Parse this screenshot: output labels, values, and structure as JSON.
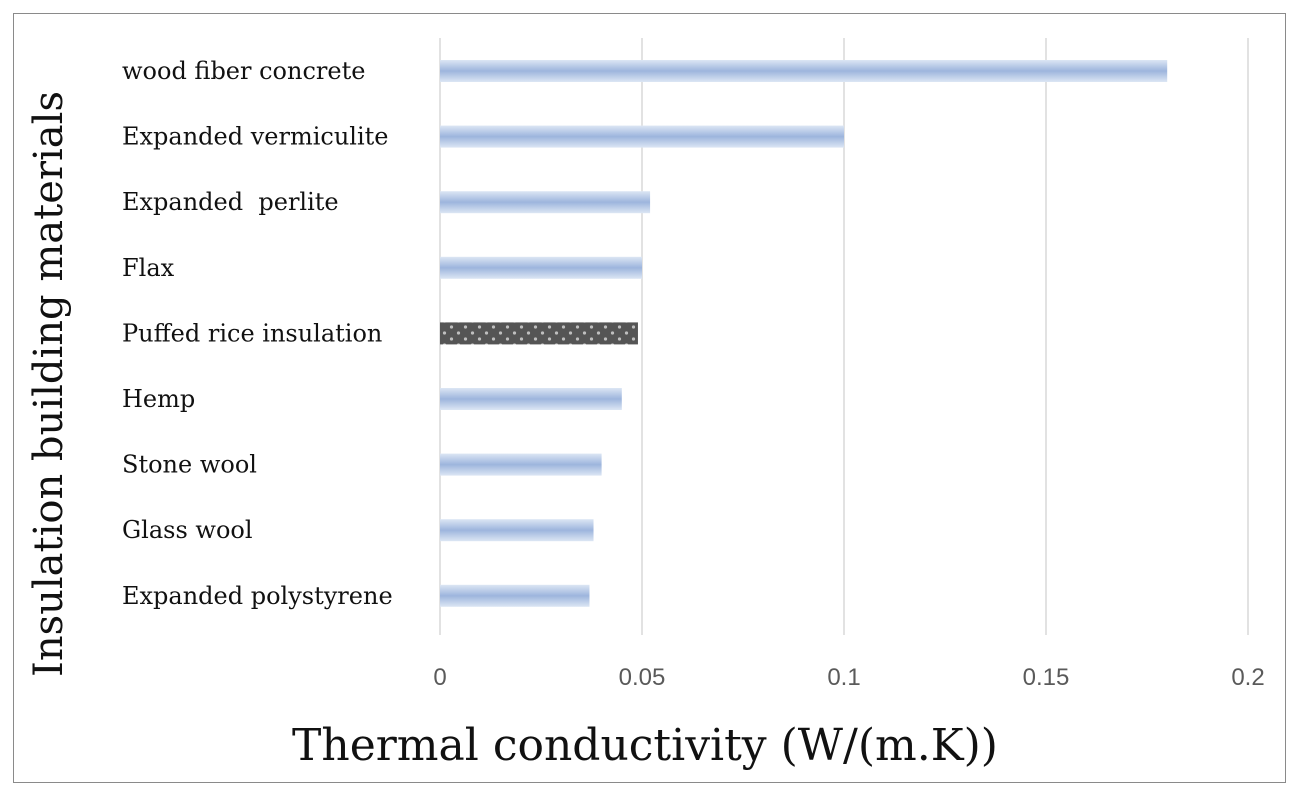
{
  "chart_data": {
    "type": "bar",
    "orientation": "horizontal",
    "categories": [
      "wood fiber concrete",
      "Expanded vermiculite",
      "Expanded  perlite",
      "Flax",
      "Puffed rice insulation",
      "Hemp",
      "Stone wool",
      "Glass wool",
      "Expanded polystyrene"
    ],
    "values": [
      0.18,
      0.1,
      0.052,
      0.05,
      0.049,
      0.045,
      0.04,
      0.038,
      0.037
    ],
    "highlight_index": 4,
    "xlabel": "Thermal conductivity (W/(m.K))",
    "ylabel": "Insulation building materials",
    "xlim": [
      0,
      0.2
    ],
    "xticks": [
      "0",
      "0.05",
      "0.1",
      "0.15",
      "0.2"
    ],
    "xtick_values": [
      0,
      0.05,
      0.1,
      0.15,
      0.2
    ],
    "grid": true,
    "colors": {
      "bar_light": "#dce6f4",
      "bar_mid": "#9db5dd",
      "highlight_bar": "#555555",
      "highlight_dot": "#bfbfbf",
      "grid": "#d9d9d9"
    }
  }
}
